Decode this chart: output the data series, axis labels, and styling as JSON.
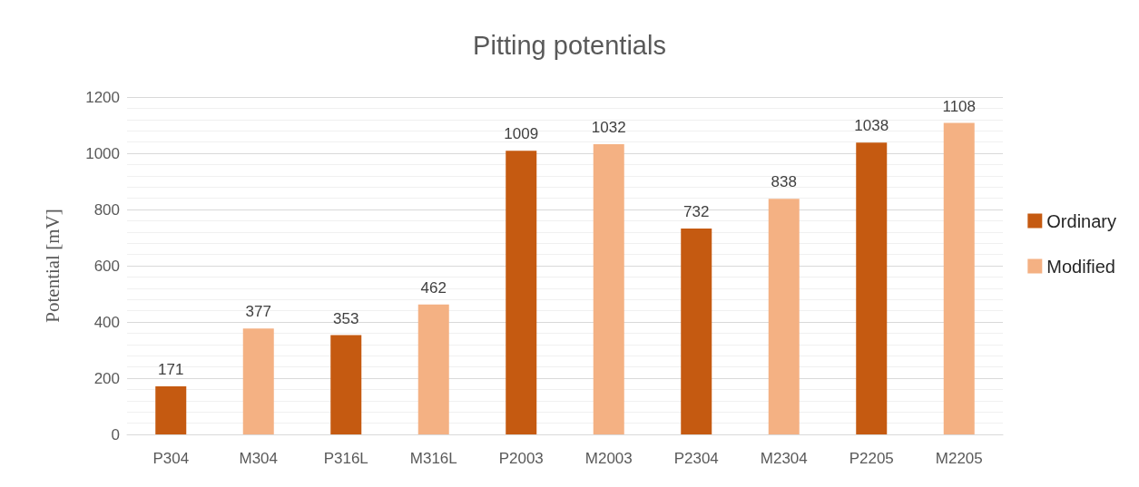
{
  "chart_data": {
    "type": "bar",
    "title": "Pitting potentials",
    "ylabel": "Potential [mV]",
    "categories": [
      "P304",
      "M304",
      "P316L",
      "M316L",
      "P2003",
      "M2003",
      "P2304",
      "M2304",
      "P2205",
      "M2205"
    ],
    "series": [
      {
        "name": "Ordinary",
        "color": "#c55a11",
        "values": [
          171,
          null,
          353,
          null,
          1009,
          null,
          732,
          null,
          1038,
          null
        ]
      },
      {
        "name": "Modified",
        "color": "#f4b183",
        "values": [
          null,
          377,
          null,
          462,
          null,
          1032,
          null,
          838,
          null,
          1108
        ]
      }
    ],
    "ylim": [
      0,
      1200
    ],
    "yticks": [
      0,
      200,
      400,
      600,
      800,
      1000,
      1200
    ],
    "grid": "y",
    "legend": "right",
    "data_labels": true
  }
}
